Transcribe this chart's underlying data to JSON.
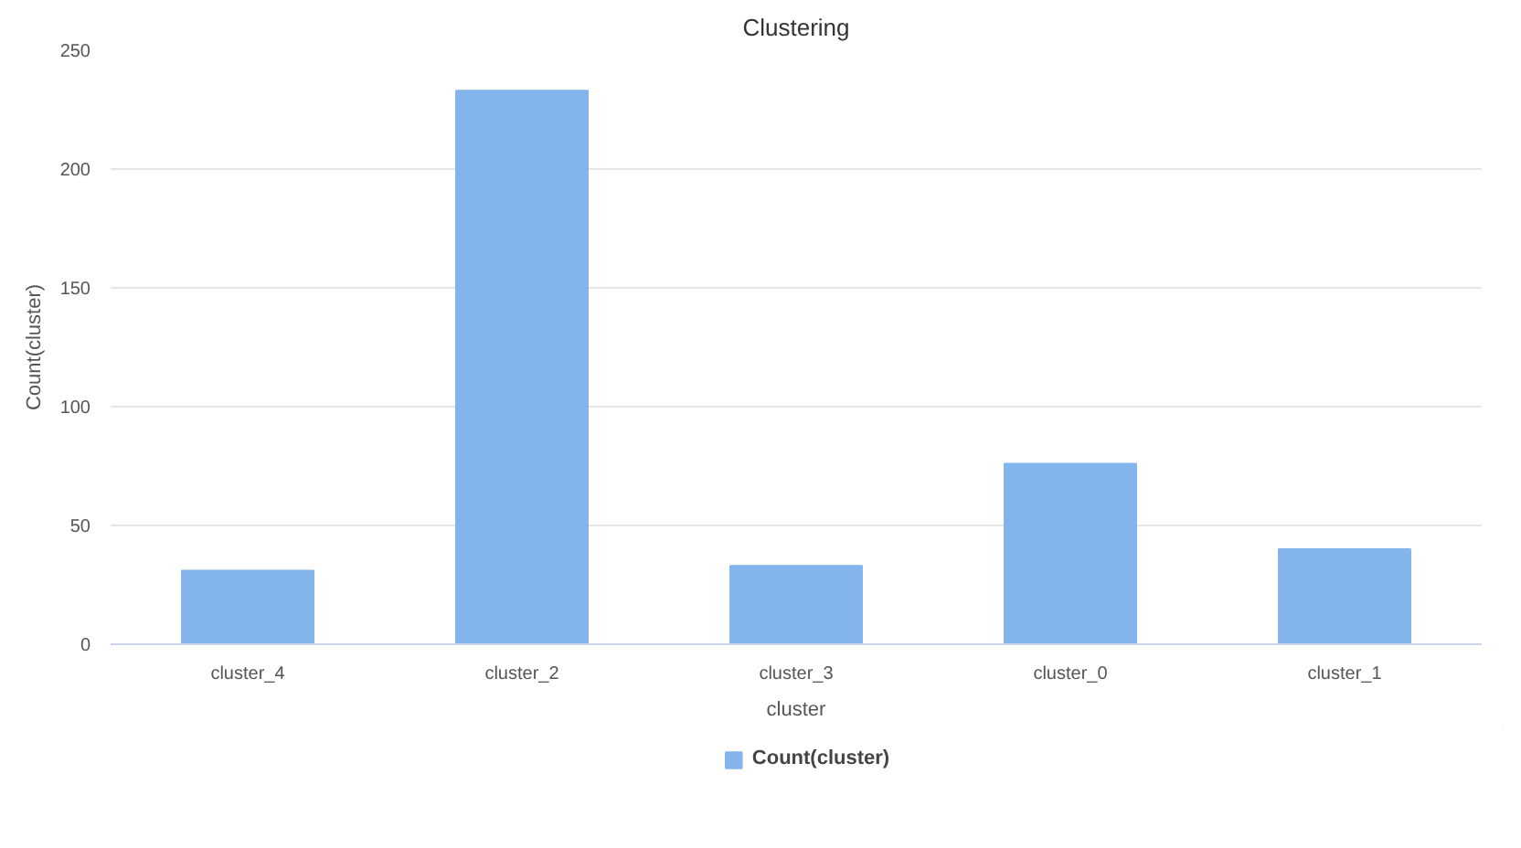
{
  "chart_data": {
    "type": "bar",
    "title": "Clustering",
    "xlabel": "cluster",
    "ylabel": "Count(cluster)",
    "categories": [
      "cluster_4",
      "cluster_2",
      "cluster_3",
      "cluster_0",
      "cluster_1"
    ],
    "series": [
      {
        "name": "Count(cluster)",
        "color": "#83b5ec",
        "values": [
          31,
          233,
          33,
          76,
          40
        ]
      }
    ],
    "ylim": [
      0,
      250
    ],
    "yticks": [
      0,
      50,
      100,
      150,
      200,
      250
    ],
    "grid": "y",
    "legend": "bottom"
  }
}
